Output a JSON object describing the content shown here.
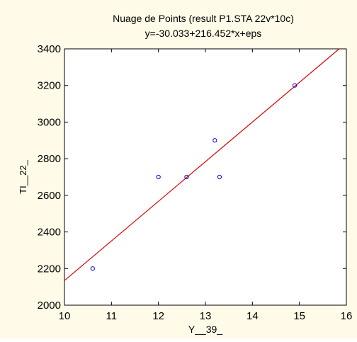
{
  "chart_data": {
    "type": "scatter",
    "title": "Nuage de Points (result P1.STA 22v*10c)",
    "subtitle": "y=-30.033+216.452*x+eps",
    "xlabel": "Y__39_",
    "ylabel": "TI__22_",
    "xlim": [
      10,
      16
    ],
    "ylim": [
      2000,
      3400
    ],
    "x_ticks": [
      10,
      11,
      12,
      13,
      14,
      15,
      16
    ],
    "y_ticks": [
      2000,
      2200,
      2400,
      2600,
      2800,
      3000,
      3200,
      3400
    ],
    "grid": false,
    "legend": "none",
    "series": [
      {
        "points": [
          {
            "x": 10.6,
            "y": 2200
          },
          {
            "x": 12.0,
            "y": 2700
          },
          {
            "x": 12.6,
            "y": 2700
          },
          {
            "x": 13.2,
            "y": 2900
          },
          {
            "x": 13.3,
            "y": 2700
          },
          {
            "x": 14.9,
            "y": 3200
          }
        ]
      }
    ],
    "fit_line": {
      "intercept": -30.033,
      "slope": 216.452
    },
    "colors": {
      "points": "#0000cc",
      "fit_line": "#e00000",
      "axes": "#000000",
      "background": "#ffffff",
      "canvas_background": "#fffbe8"
    }
  }
}
